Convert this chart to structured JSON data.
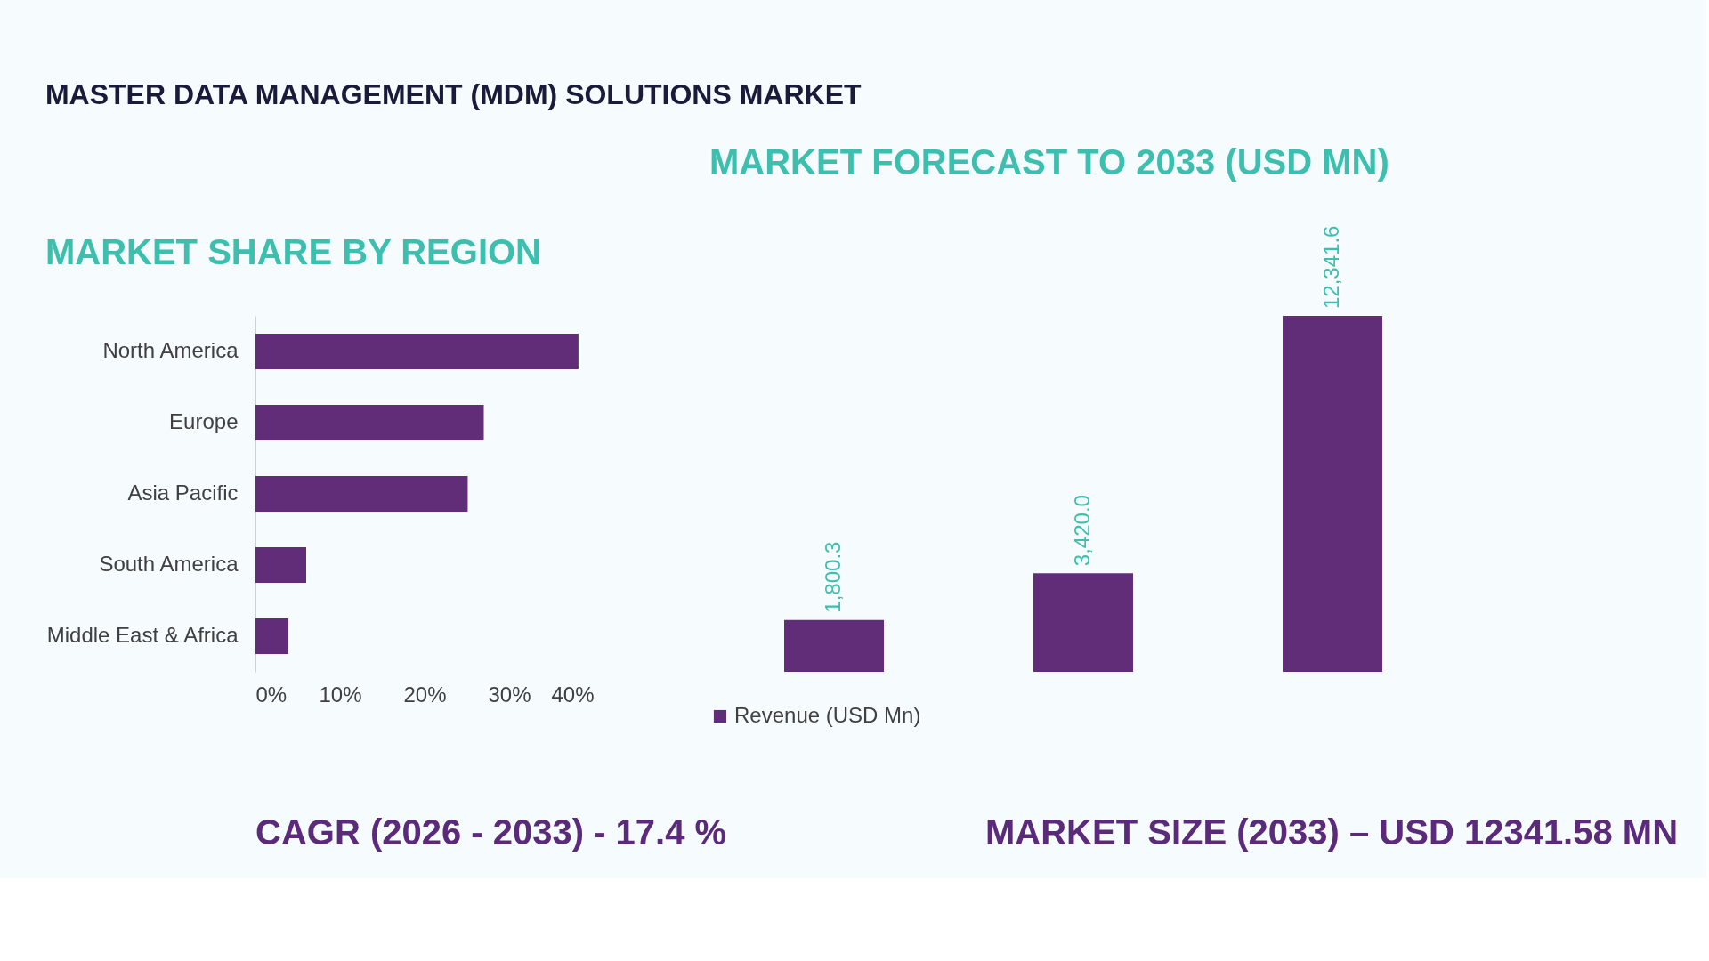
{
  "chart_data": [
    {
      "type": "other",
      "title": "MASTER DATA MANAGEMENT (MDM) SOLUTIONS MARKET",
      "annotations": [
        "CAGR (2026 - 2033) - 17.4 %",
        "MARKET SIZE (2033) – USD 12341.58 MN"
      ]
    },
    {
      "type": "bar",
      "orientation": "horizontal",
      "title": "MARKET SHARE BY REGION",
      "categories": [
        "North America",
        "Europe",
        "Asia Pacific",
        "South America",
        "Middle East & Africa"
      ],
      "values": [
        38.2,
        27.0,
        25.1,
        6.0,
        3.9
      ],
      "color": "#622d78",
      "xlim": [
        0,
        40
      ],
      "xticks": [
        {
          "value": 0,
          "label": "0%"
        },
        {
          "value": 10,
          "label": "10%"
        },
        {
          "value": 20,
          "label": "20%"
        },
        {
          "value": 30,
          "label": "30%"
        },
        {
          "value": 40,
          "label": "40%"
        }
      ],
      "grid": false
    },
    {
      "type": "bar",
      "title": "MARKET FORECAST TO 2033 (USD MN)",
      "categories": [
        null,
        null,
        null
      ],
      "series": [
        {
          "name": "Revenue (USD Mn)",
          "color": "#622d78",
          "values": [
            1800.3,
            3420.0,
            12341.6
          ],
          "value_labels": [
            "1,800.3",
            "3,420.0",
            "12,341.6"
          ]
        }
      ],
      "legend": "bottom",
      "grid": false
    }
  ]
}
